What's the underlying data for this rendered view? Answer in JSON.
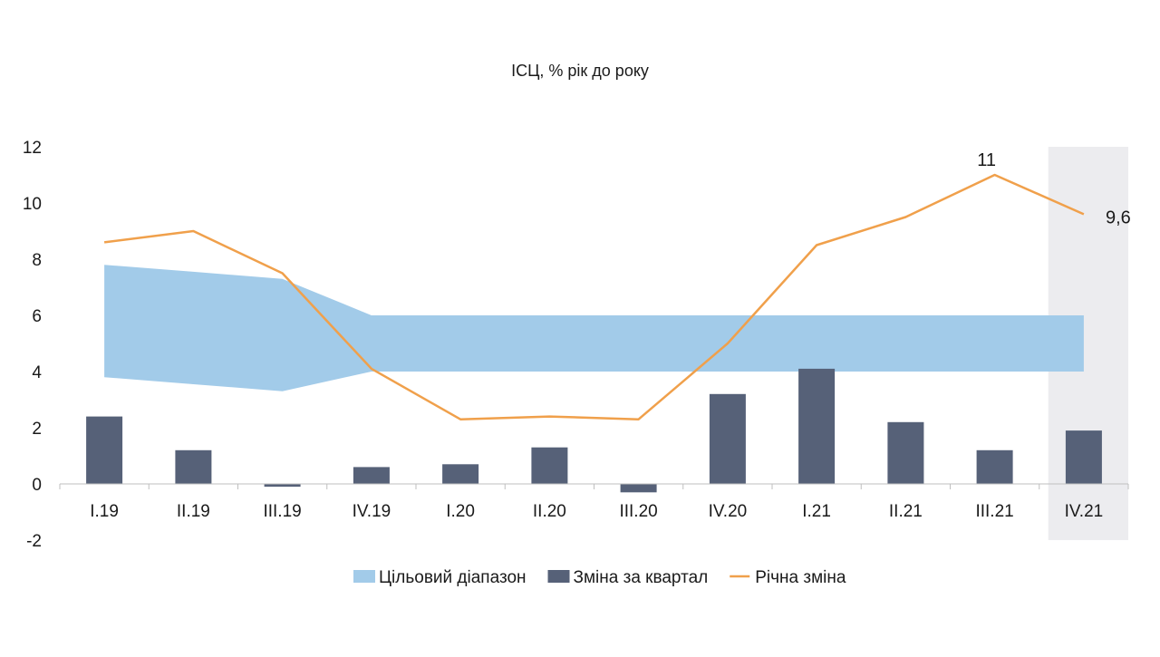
{
  "chart_data": {
    "type": "bar",
    "title": "ІСЦ, % рік до року",
    "categories": [
      "I.19",
      "II.19",
      "III.19",
      "IV.19",
      "I.20",
      "II.20",
      "III.20",
      "IV.20",
      "I.21",
      "II.21",
      "III.21",
      "IV.21"
    ],
    "ylim": [
      -2,
      12
    ],
    "yticks": [
      -2,
      0,
      2,
      4,
      6,
      8,
      10,
      12
    ],
    "grid": false,
    "legend_position": "bottom",
    "highlighted_category": "IV.21",
    "series": [
      {
        "name": "Цільовий діапазон",
        "type": "area-range",
        "lower": [
          3.8,
          3.55,
          3.3,
          4,
          4,
          4,
          4,
          4,
          4,
          4,
          4,
          4
        ],
        "upper": [
          7.8,
          7.55,
          7.3,
          6,
          6,
          6,
          6,
          6,
          6,
          6,
          6,
          6
        ],
        "color": "#a2cbe9"
      },
      {
        "name": "Зміна за квартал",
        "type": "bar",
        "values": [
          2.4,
          1.2,
          -0.1,
          0.6,
          0.7,
          1.3,
          -0.3,
          3.2,
          4.1,
          2.2,
          1.2,
          1.9
        ],
        "color": "#566178"
      },
      {
        "name": "Річна зміна",
        "type": "line",
        "values": [
          8.6,
          9.0,
          7.5,
          4.1,
          2.3,
          2.4,
          2.3,
          5.0,
          8.5,
          9.5,
          11.0,
          9.6
        ],
        "color": "#f0a04b"
      }
    ],
    "annotations": [
      {
        "category": "III.21",
        "text": "11"
      },
      {
        "category": "IV.21",
        "text": "9,6"
      }
    ]
  }
}
